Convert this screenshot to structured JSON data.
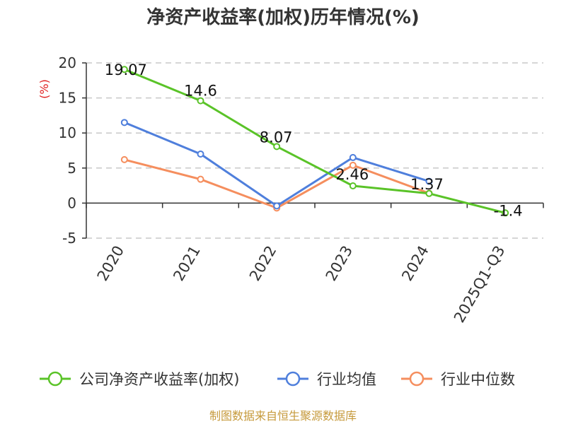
{
  "chart_data": {
    "type": "line",
    "title": "净资产收益率(加权)历年情况(%)",
    "ylabel": "(%)",
    "xlabel": "",
    "categories": [
      "2020",
      "2021",
      "2022",
      "2023",
      "2024",
      "2025Q1-Q3"
    ],
    "ylim": [
      -5,
      20
    ],
    "yticks": [
      -5,
      0,
      5,
      10,
      15,
      20
    ],
    "grid": true,
    "legend_position": "bottom",
    "series": [
      {
        "name": "公司净资产收益率(加权)",
        "color": "#5ac328",
        "values": [
          19.07,
          14.6,
          8.07,
          2.46,
          1.37,
          -1.4
        ],
        "data_labels": [
          "19.07",
          "14.6",
          "8.07",
          "2.46",
          "1.37",
          "-1.4"
        ]
      },
      {
        "name": "行业均值",
        "color": "#4f7fdc",
        "values": [
          11.5,
          7.0,
          -0.4,
          6.5,
          3.1,
          null
        ]
      },
      {
        "name": "行业中位数",
        "color": "#f58e5e",
        "values": [
          6.2,
          3.4,
          -0.7,
          5.4,
          1.4,
          null
        ]
      }
    ]
  },
  "source": "制图数据来自恒生聚源数据库"
}
